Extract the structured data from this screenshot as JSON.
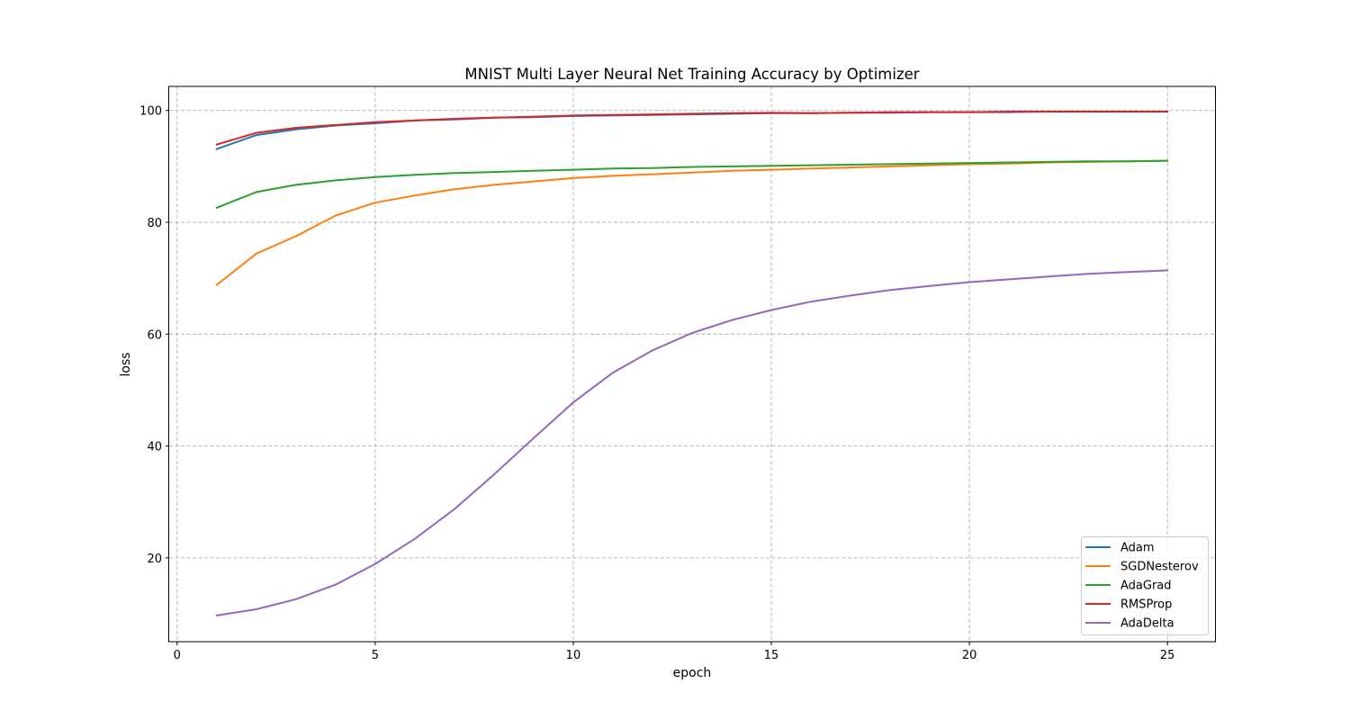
{
  "chart_data": {
    "type": "line",
    "title": "MNIST Multi Layer Neural Net Training Accuracy by Optimizer",
    "xlabel": "epoch",
    "ylabel": "loss",
    "xlim": [
      -0.2,
      26.2
    ],
    "ylim": [
      5.0,
      104.3
    ],
    "xticks": [
      0,
      5,
      10,
      15,
      20,
      25
    ],
    "yticks": [
      20,
      40,
      60,
      80,
      100
    ],
    "grid": true,
    "legend_position": "lower right",
    "x": [
      1,
      2,
      3,
      4,
      5,
      6,
      7,
      8,
      9,
      10,
      11,
      12,
      13,
      14,
      15,
      16,
      17,
      18,
      19,
      20,
      21,
      22,
      23,
      24,
      25
    ],
    "series": [
      {
        "name": "Adam",
        "color": "#1f77b4",
        "values": [
          93.1,
          95.6,
          96.6,
          97.3,
          97.7,
          98.2,
          98.4,
          98.7,
          98.8,
          99.0,
          99.1,
          99.2,
          99.3,
          99.4,
          99.5,
          99.5,
          99.6,
          99.6,
          99.7,
          99.7,
          99.7,
          99.8,
          99.8,
          99.8,
          99.8
        ]
      },
      {
        "name": "SGDNesterov",
        "color": "#ff7f0e",
        "values": [
          68.8,
          74.4,
          77.5,
          81.2,
          83.5,
          84.8,
          85.9,
          86.7,
          87.3,
          87.9,
          88.3,
          88.6,
          88.9,
          89.2,
          89.4,
          89.6,
          89.8,
          90.0,
          90.2,
          90.4,
          90.5,
          90.7,
          90.8,
          90.9,
          91.0
        ]
      },
      {
        "name": "AdaGrad",
        "color": "#2ca02c",
        "values": [
          82.6,
          85.4,
          86.7,
          87.5,
          88.1,
          88.5,
          88.8,
          89.0,
          89.2,
          89.4,
          89.6,
          89.7,
          89.9,
          90.0,
          90.1,
          90.2,
          90.3,
          90.4,
          90.5,
          90.6,
          90.7,
          90.8,
          90.9,
          90.9,
          91.0
        ]
      },
      {
        "name": "RMSProp",
        "color": "#d62728",
        "values": [
          93.9,
          96.0,
          96.9,
          97.4,
          97.9,
          98.2,
          98.5,
          98.7,
          98.9,
          99.1,
          99.2,
          99.3,
          99.4,
          99.5,
          99.6,
          99.5,
          99.6,
          99.7,
          99.7,
          99.7,
          99.8,
          99.8,
          99.8,
          99.8,
          99.8
        ]
      },
      {
        "name": "AdaDelta",
        "color": "#9467bd",
        "values": [
          9.7,
          10.8,
          12.6,
          15.2,
          18.9,
          23.4,
          28.7,
          34.9,
          41.4,
          47.8,
          53.1,
          57.1,
          60.2,
          62.5,
          64.3,
          65.8,
          66.9,
          67.9,
          68.6,
          69.3,
          69.8,
          70.3,
          70.8,
          71.1,
          71.4
        ]
      }
    ]
  }
}
